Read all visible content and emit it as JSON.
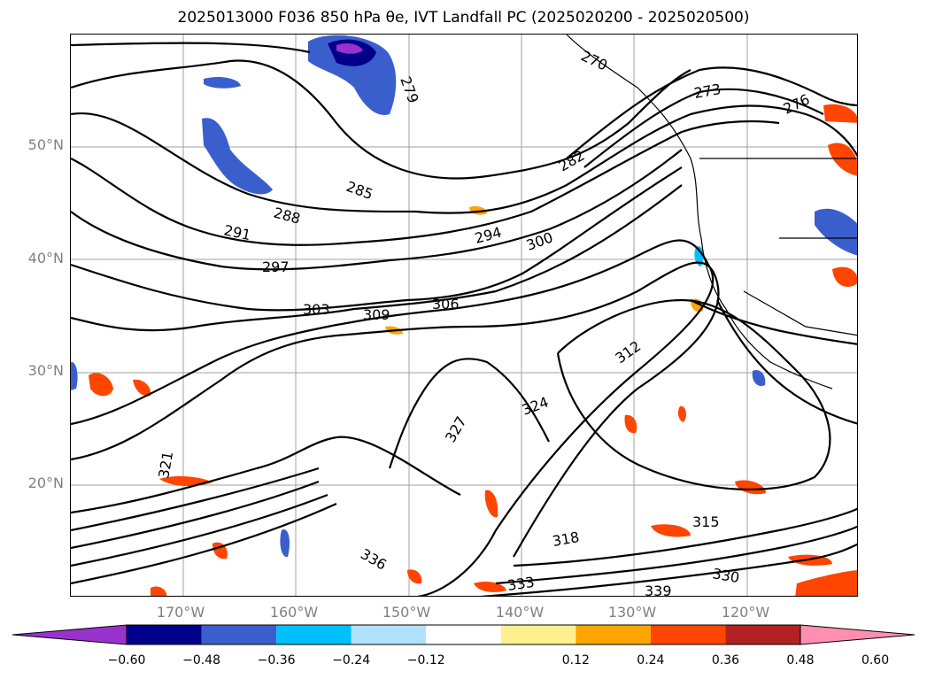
{
  "title": "2025013000 F036 850 hPa θe, IVT Landfall PC (2025020200 - 2025020500)",
  "lat_labels": [
    "50°N",
    "40°N",
    "30°N",
    "20°N"
  ],
  "lon_labels": [
    "170°W",
    "160°W",
    "150°W",
    "140°W",
    "130°W",
    "120°W"
  ],
  "contour_labels": [
    {
      "text": "279"
    },
    {
      "text": "270"
    },
    {
      "text": "273"
    },
    {
      "text": "276"
    },
    {
      "text": "282"
    },
    {
      "text": "285"
    },
    {
      "text": "288"
    },
    {
      "text": "291"
    },
    {
      "text": "294"
    },
    {
      "text": "297"
    },
    {
      "text": "300"
    },
    {
      "text": "303"
    },
    {
      "text": "306"
    },
    {
      "text": "309"
    },
    {
      "text": "312"
    },
    {
      "text": "315"
    },
    {
      "text": "318"
    },
    {
      "text": "321"
    },
    {
      "text": "324"
    },
    {
      "text": "327"
    },
    {
      "text": "330"
    },
    {
      "text": "333"
    },
    {
      "text": "336"
    },
    {
      "text": "339"
    }
  ],
  "colorbar": {
    "ticks": [
      "−0.60",
      "−0.48",
      "−0.36",
      "−0.24",
      "−0.12",
      "0.12",
      "0.24",
      "0.36",
      "0.48",
      "0.60"
    ],
    "colors": [
      "#9932cc",
      "#00008b",
      "#3a5fcd",
      "#00bfff",
      "#b0e2ff",
      "#ffffff",
      "#fff08f",
      "#ffa500",
      "#ff4500",
      "#b22222",
      "#ff8fb0"
    ]
  }
}
